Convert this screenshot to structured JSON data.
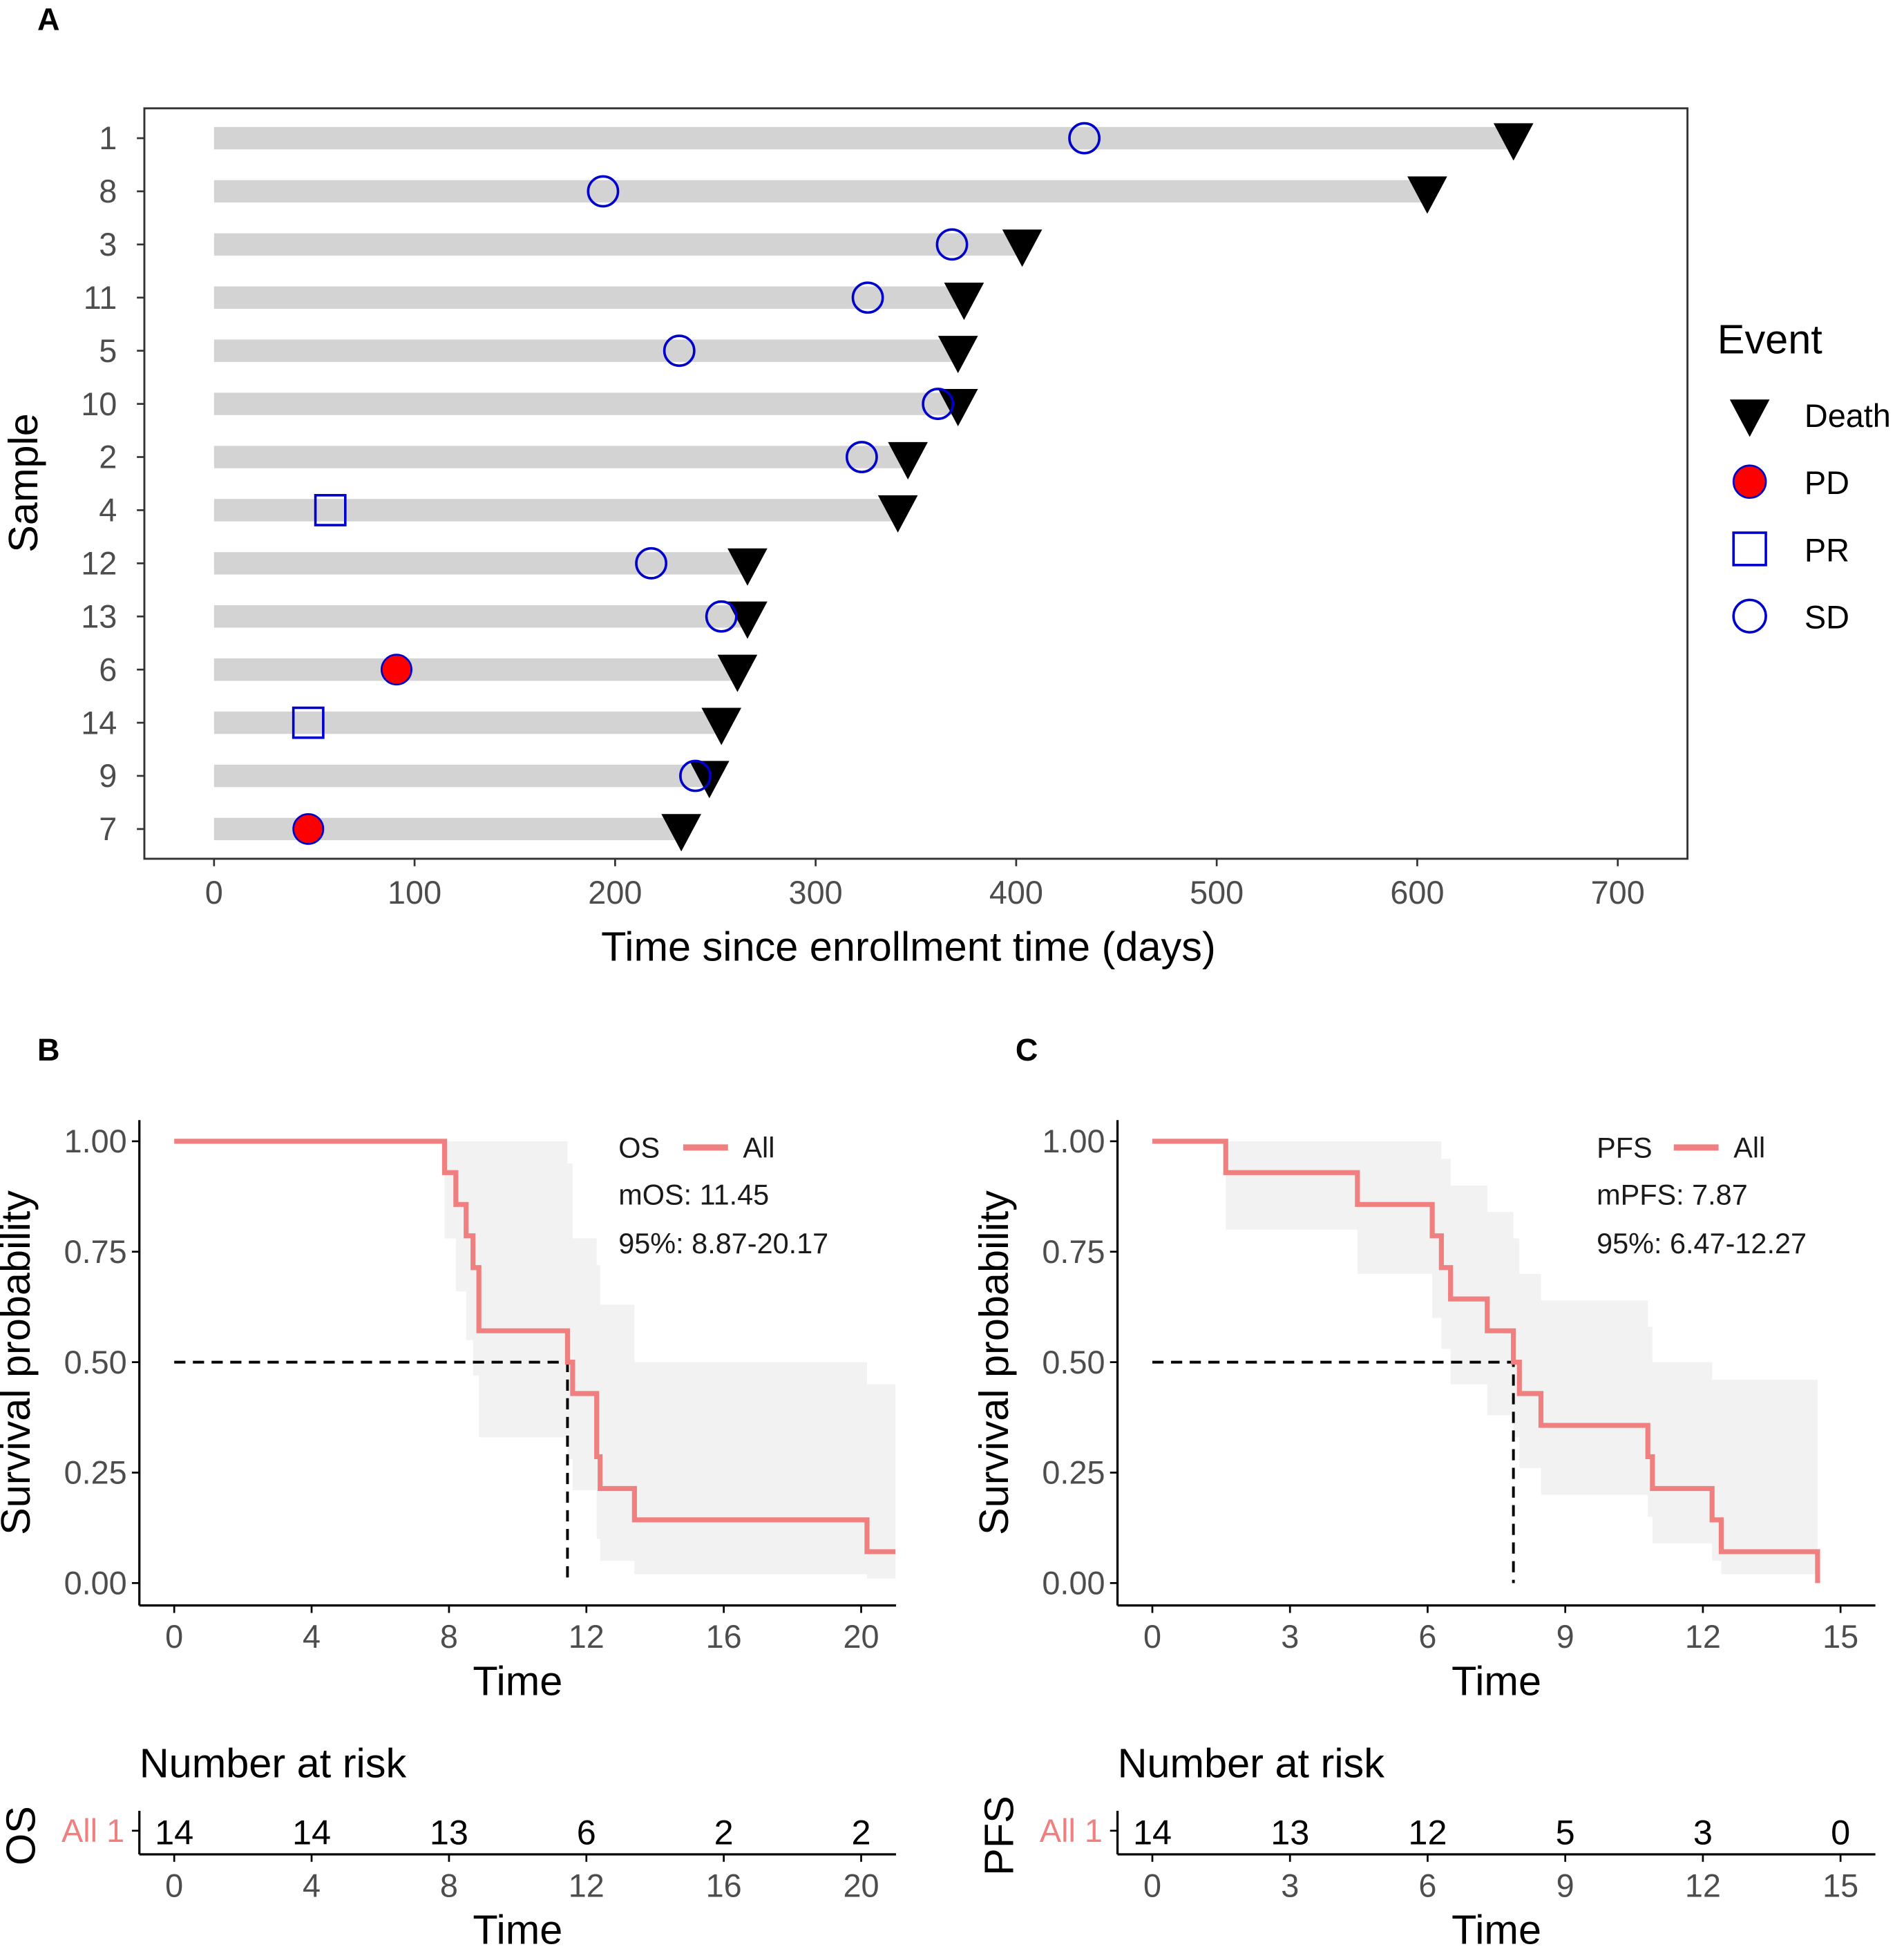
{
  "colors": {
    "bar": "#d3d3d3",
    "sd": "#0000cc",
    "pd_fill": "#ff0000",
    "death": "#000000",
    "km": "#f08080",
    "band": "#f2f2f2"
  },
  "chart_data": [
    {
      "panel": "A",
      "type": "swimmer",
      "xlabel": "Time since enrollment time (days)",
      "ylabel": "Sample",
      "xlim": [
        0,
        700
      ],
      "xticks": [
        "0",
        "100",
        "200",
        "300",
        "400",
        "500",
        "600",
        "700"
      ],
      "legend": {
        "title": "Event",
        "placement": "right",
        "items": [
          "Death",
          "PD",
          "PR",
          "SD"
        ]
      },
      "samples": [
        {
          "id": "1",
          "end": 648,
          "event": "SD",
          "event_time": 434
        },
        {
          "id": "8",
          "end": 605,
          "event": "SD",
          "event_time": 194
        },
        {
          "id": "3",
          "end": 403,
          "event": "SD",
          "event_time": 368
        },
        {
          "id": "11",
          "end": 374,
          "event": "SD",
          "event_time": 326
        },
        {
          "id": "5",
          "end": 371,
          "event": "SD",
          "event_time": 232
        },
        {
          "id": "10",
          "end": 371,
          "event": "SD",
          "event_time": 361
        },
        {
          "id": "2",
          "end": 346,
          "event": "SD",
          "event_time": 323
        },
        {
          "id": "4",
          "end": 341,
          "event": "PR",
          "event_time": 58
        },
        {
          "id": "12",
          "end": 266,
          "event": "SD",
          "event_time": 218
        },
        {
          "id": "13",
          "end": 266,
          "event": "SD",
          "event_time": 253
        },
        {
          "id": "6",
          "end": 261,
          "event": "PD",
          "event_time": 91
        },
        {
          "id": "14",
          "end": 253,
          "event": "PR",
          "event_time": 47
        },
        {
          "id": "9",
          "end": 247,
          "event": "SD",
          "event_time": 240
        },
        {
          "id": "7",
          "end": 233,
          "event": "PD",
          "event_time": 47
        }
      ]
    },
    {
      "panel": "B",
      "type": "line",
      "xlabel": "Time",
      "ylabel": "Survival probability",
      "xlim": [
        0,
        21
      ],
      "xticks": [
        0,
        4,
        8,
        12,
        16,
        20
      ],
      "ylim": [
        0,
        1
      ],
      "yticks": [
        "0.00",
        "0.25",
        "0.50",
        "0.75",
        "1.00"
      ],
      "legend": {
        "title": "OS",
        "entry": "All"
      },
      "annotations": [
        "mOS: 11.45",
        "95%: 8.87-20.17"
      ],
      "median": 11.45,
      "time": [
        0,
        7.87,
        8.2,
        8.5,
        8.7,
        8.87,
        11.45,
        11.6,
        12.3,
        12.4,
        13.4,
        20.17
      ],
      "surv": [
        1,
        0.929,
        0.857,
        0.786,
        0.714,
        0.571,
        0.5,
        0.429,
        0.286,
        0.214,
        0.143,
        0.071
      ],
      "upper": [
        1,
        1,
        1,
        1,
        1,
        1,
        0.95,
        0.78,
        0.72,
        0.63,
        0.5,
        0.45
      ],
      "lower": [
        1,
        0.78,
        0.66,
        0.55,
        0.47,
        0.33,
        0.28,
        0.21,
        0.1,
        0.05,
        0.02,
        0.01
      ],
      "end": 21,
      "risk": {
        "title": "Number at risk",
        "row_name": "OS",
        "stratum": "All 1",
        "times": [
          0,
          4,
          8,
          12,
          16,
          20
        ],
        "counts": [
          "14",
          "14",
          "13",
          "6",
          "2",
          "2"
        ],
        "xlabel": "Time"
      }
    },
    {
      "panel": "C",
      "type": "line",
      "xlabel": "Time",
      "ylabel": "Survival probability",
      "xlim": [
        0,
        15
      ],
      "xticks": [
        0,
        3,
        6,
        9,
        12,
        15
      ],
      "ylim": [
        0,
        1
      ],
      "yticks": [
        "0.00",
        "0.25",
        "0.50",
        "0.75",
        "1.00"
      ],
      "legend": {
        "title": "PFS",
        "entry": "All"
      },
      "annotations": [
        "mPFS: 7.87",
        "95%: 6.47-12.27"
      ],
      "median": 7.87,
      "time": [
        0,
        1.6,
        4.47,
        6.1,
        6.3,
        6.5,
        7.3,
        7.87,
        8.0,
        8.47,
        10.8,
        10.9,
        12.2,
        12.4,
        14.5
      ],
      "surv": [
        1,
        0.929,
        0.857,
        0.786,
        0.714,
        0.643,
        0.571,
        0.5,
        0.429,
        0.357,
        0.286,
        0.214,
        0.143,
        0.071,
        0
      ],
      "upper": [
        1,
        1,
        1,
        1,
        0.96,
        0.9,
        0.84,
        0.78,
        0.7,
        0.64,
        0.58,
        0.5,
        0.46,
        0.46,
        0.46
      ],
      "lower": [
        1,
        0.8,
        0.7,
        0.6,
        0.53,
        0.45,
        0.38,
        0.33,
        0.26,
        0.2,
        0.15,
        0.09,
        0.05,
        0.02,
        0
      ],
      "end": 14.5,
      "risk": {
        "title": "Number at risk",
        "row_name": "PFS",
        "stratum": "All 1",
        "times": [
          0,
          3,
          6,
          9,
          12,
          15
        ],
        "counts": [
          "14",
          "13",
          "12",
          "5",
          "3",
          "0"
        ],
        "xlabel": "Time"
      }
    }
  ]
}
